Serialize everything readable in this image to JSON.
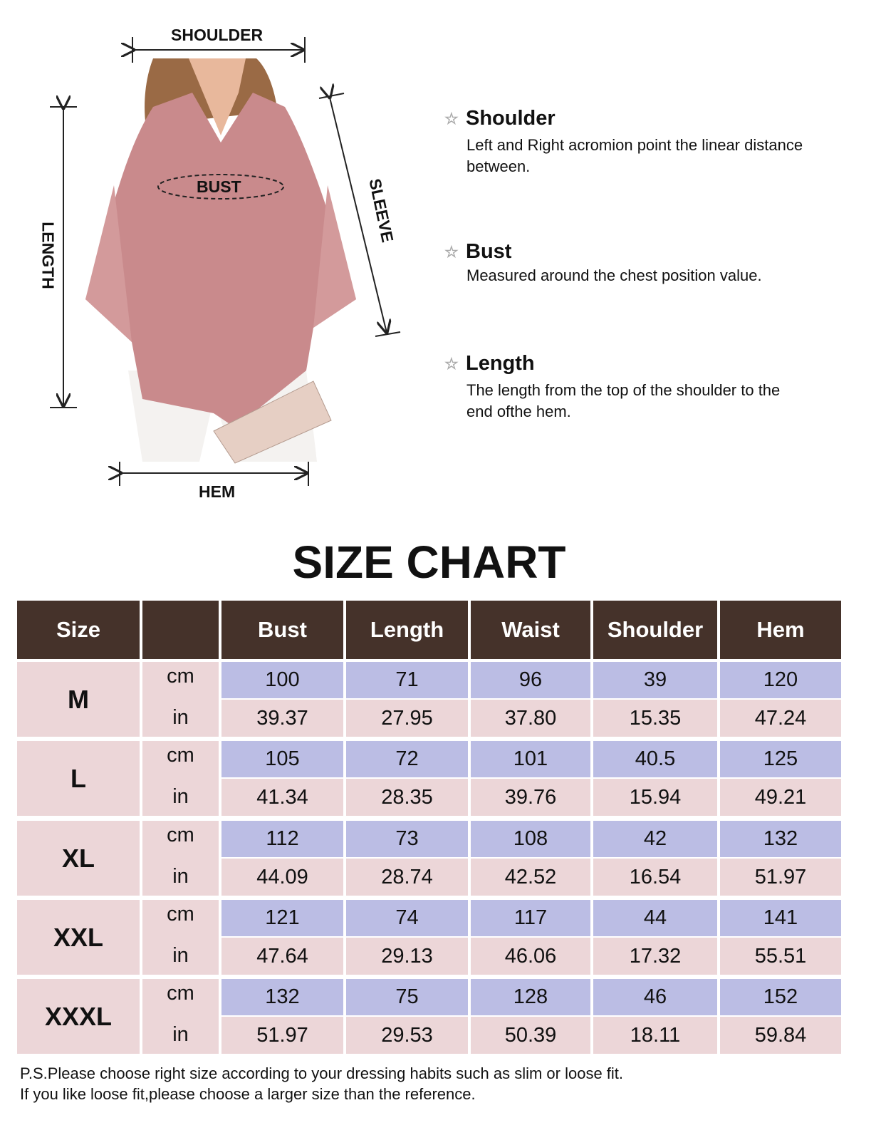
{
  "diagram": {
    "labels": {
      "shoulder": "SHOULDER",
      "bust": "BUST",
      "length": "LENGTH",
      "sleeve": "SLEEVE",
      "hem": "HEM"
    }
  },
  "notes": [
    {
      "icon": "star-icon",
      "title": "Shoulder",
      "desc": "Left and Right acromion point the linear distance between."
    },
    {
      "icon": "star-icon",
      "title": "Bust",
      "desc": "Measured around the chest position value."
    },
    {
      "icon": "star-icon",
      "title": "Length",
      "desc": "The length from the top of the shoulder to the end ofthe hem."
    }
  ],
  "title": "SIZE CHART",
  "table": {
    "headers": [
      "Size",
      "",
      "Bust",
      "Length",
      "Waist",
      "Shoulder",
      "Hem"
    ],
    "units": [
      "cm",
      "in"
    ],
    "rows": [
      {
        "size": "M",
        "cm": [
          "100",
          "71",
          "96",
          "39",
          "120"
        ],
        "in": [
          "39.37",
          "27.95",
          "37.80",
          "15.35",
          "47.24"
        ]
      },
      {
        "size": "L",
        "cm": [
          "105",
          "72",
          "101",
          "40.5",
          "125"
        ],
        "in": [
          "41.34",
          "28.35",
          "39.76",
          "15.94",
          "49.21"
        ]
      },
      {
        "size": "XL",
        "cm": [
          "112",
          "73",
          "108",
          "42",
          "132"
        ],
        "in": [
          "44.09",
          "28.74",
          "42.52",
          "16.54",
          "51.97"
        ]
      },
      {
        "size": "XXL",
        "cm": [
          "121",
          "74",
          "117",
          "44",
          "141"
        ],
        "in": [
          "47.64",
          "29.13",
          "46.06",
          "17.32",
          "55.51"
        ]
      },
      {
        "size": "XXXL",
        "cm": [
          "132",
          "75",
          "128",
          "46",
          "152"
        ],
        "in": [
          "51.97",
          "29.53",
          "50.39",
          "18.11",
          "59.84"
        ]
      }
    ]
  },
  "footnote": [
    "P.S.Please choose right size according to your dressing habits such as slim or loose fit.",
    "If you like loose fit,please choose a larger size than the reference."
  ],
  "colors": {
    "header": "#45322a",
    "pink": "#ecd6d8",
    "blue": "#bbbde4",
    "blouse": "#c98a8c"
  }
}
